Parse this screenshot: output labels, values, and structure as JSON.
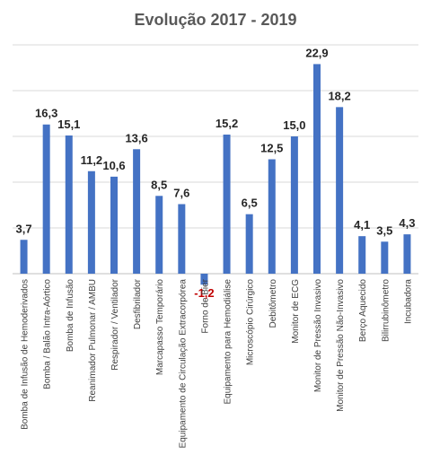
{
  "chart_data": {
    "type": "bar",
    "title": "Evolução 2017 - 2019",
    "categories": [
      "Bomba de Infusão de Hemoderivados",
      "Bomba / Balão Intra-Aórtico",
      "Bomba de Infusão",
      "Reanimador Pulmonar / AMBU",
      "Respirador / Ventilador",
      "Desfibrilador",
      "Marcapasso Temporário",
      "Equipamento de Circulação Extracorpórea",
      "Forno de Bier",
      "Equipamento para Hemodiálise",
      "Microscópio Cirúrgico",
      "Debitômetro",
      "Monitor de ECG",
      "Monitor de Pressão Invasivo",
      "Monitor de Pressão Não-Invasivo",
      "Berço Aquecido",
      "Bilirrubinômetro",
      "Incubadora"
    ],
    "series": [
      {
        "values": [
          3.7,
          16.3,
          15.1,
          11.2,
          10.6,
          13.6,
          8.5,
          7.6,
          -1.2,
          15.2,
          6.5,
          12.5,
          15.0,
          22.9,
          18.2,
          4.1,
          3.5,
          4.3
        ]
      }
    ],
    "data_labels": [
      "3,7",
      "16,3",
      "15,1",
      "11,2",
      "10,6",
      "13,6",
      "8,5",
      "7,6",
      "-1,2",
      "15,2",
      "6,5",
      "12,5",
      "15,0",
      "22,9",
      "18,2",
      "4,1",
      "3,5",
      "4,3"
    ],
    "ylim": [
      -2,
      25
    ],
    "gridlines_at": [
      0,
      5,
      10,
      15,
      20,
      25
    ],
    "grid": true,
    "legend": "none",
    "colors": {
      "bar": "#4472c4",
      "negative_label": "#c00000",
      "grid": "#d9d9d9",
      "title": "#595959"
    }
  }
}
